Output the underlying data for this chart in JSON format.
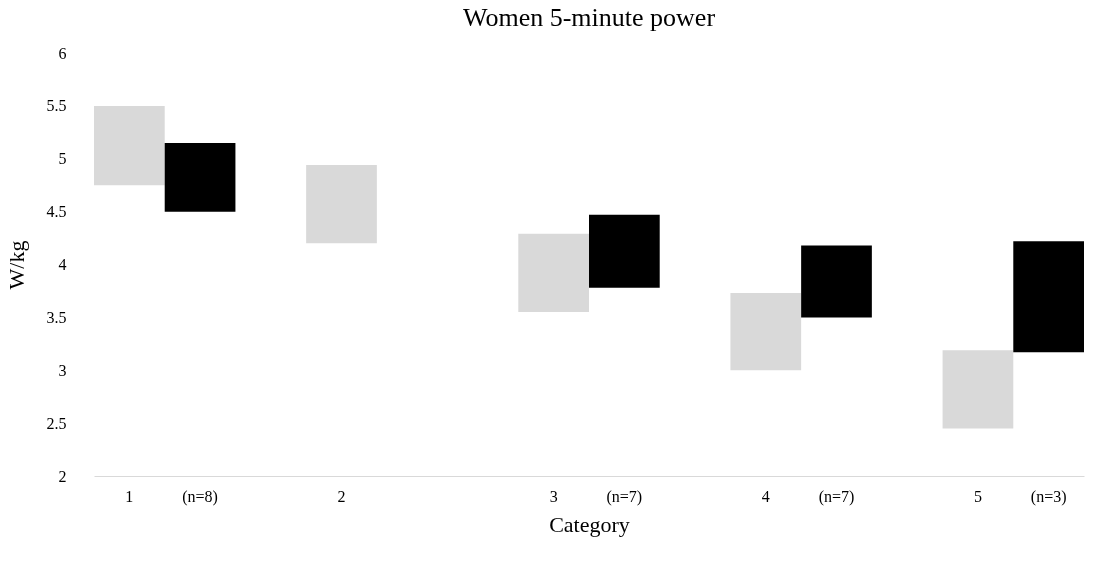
{
  "chart_data": {
    "type": "bar",
    "title": "Women 5-minute power",
    "xlabel": "Category",
    "ylabel": "W/kg",
    "categories": [
      "1",
      "(n=8)",
      null,
      "2",
      null,
      null,
      "3",
      "(n=7)",
      null,
      "4",
      "(n=7)",
      null,
      "5",
      "(n=3)"
    ],
    "series": [
      {
        "color": "#d9d9d9",
        "base": [
          4.75,
          null,
          null,
          4.2,
          null,
          null,
          3.55,
          null,
          null,
          3.0,
          null,
          null,
          2.45,
          null
        ],
        "values": [
          0.75,
          null,
          null,
          0.74,
          null,
          null,
          0.74,
          null,
          null,
          0.73,
          null,
          null,
          0.74,
          null
        ]
      },
      {
        "color": "#000000",
        "base": [
          null,
          4.5,
          null,
          null,
          null,
          null,
          null,
          3.78,
          null,
          null,
          3.5,
          null,
          null,
          3.17
        ],
        "values": [
          null,
          0.65,
          null,
          null,
          null,
          null,
          null,
          0.69,
          null,
          null,
          0.68,
          null,
          null,
          1.05
        ]
      }
    ],
    "ylim": [
      2,
      6
    ],
    "yticks": [
      2,
      2.5,
      3,
      3.5,
      4,
      4.5,
      5,
      5.5,
      6
    ],
    "grid": false,
    "legend": false
  }
}
